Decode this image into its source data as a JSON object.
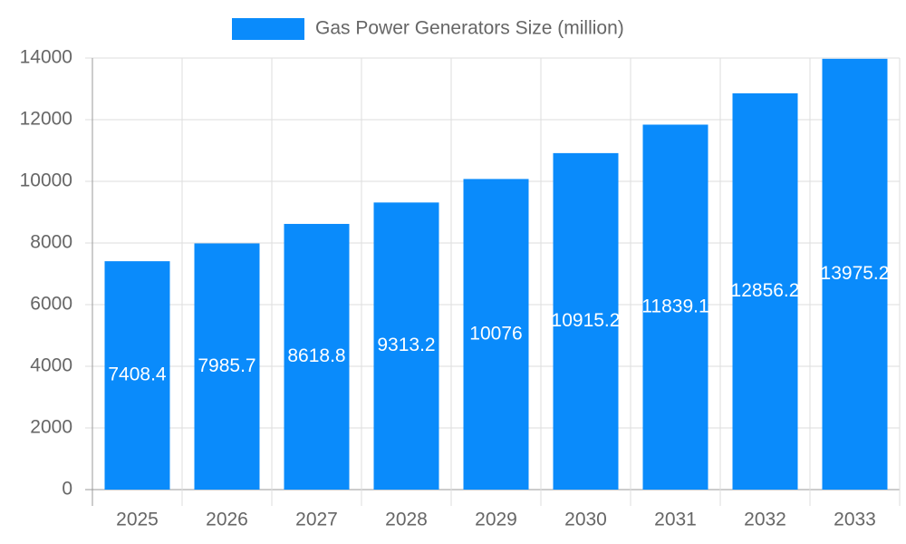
{
  "chart_data": {
    "type": "bar",
    "categories": [
      "2025",
      "2026",
      "2027",
      "2028",
      "2029",
      "2030",
      "2031",
      "2032",
      "2033"
    ],
    "series": [
      {
        "name": "Gas Power Generators Size (million)",
        "color": "#0a8bfb",
        "values": [
          7408.4,
          7985.7,
          8618.8,
          9313.2,
          10076,
          10915.2,
          11839.1,
          12856.2,
          13975.2
        ]
      }
    ],
    "ylim": [
      0,
      14000
    ],
    "yticks": [
      0,
      2000,
      4000,
      6000,
      8000,
      10000,
      12000,
      14000
    ],
    "grid": true,
    "legend": "top"
  }
}
